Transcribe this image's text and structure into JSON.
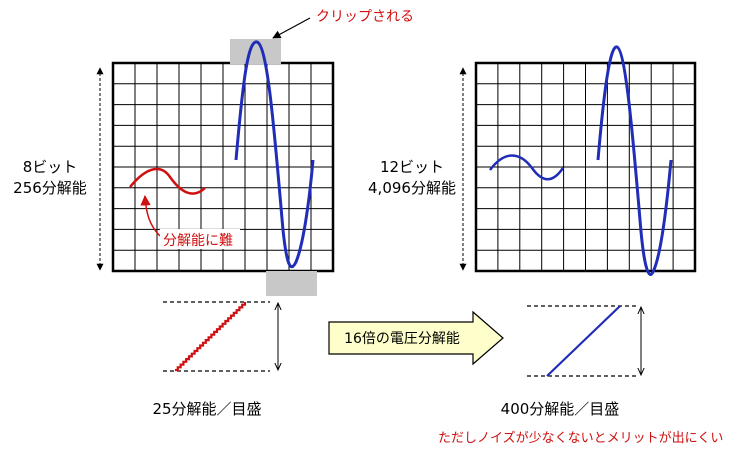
{
  "left": {
    "bits_label": "8ビット",
    "resolution_label": "256分解能",
    "clip_label": "クリップされる",
    "hard_to_resolve_label": "分解能に難",
    "per_division_label": "25分解能／目盛"
  },
  "right": {
    "bits_label": "12ビット",
    "resolution_label": "4,096分解能",
    "per_division_label": "400分解能／目盛",
    "note": "ただしノイズが少なくないとメリットが出にくい"
  },
  "arrow_label": "16倍の電圧分解能",
  "colors": {
    "waveform": "#1f2db8",
    "annotation": "#d01010",
    "clip_box": "#c8c8c8",
    "arrow_fill": "#ffffcc"
  }
}
